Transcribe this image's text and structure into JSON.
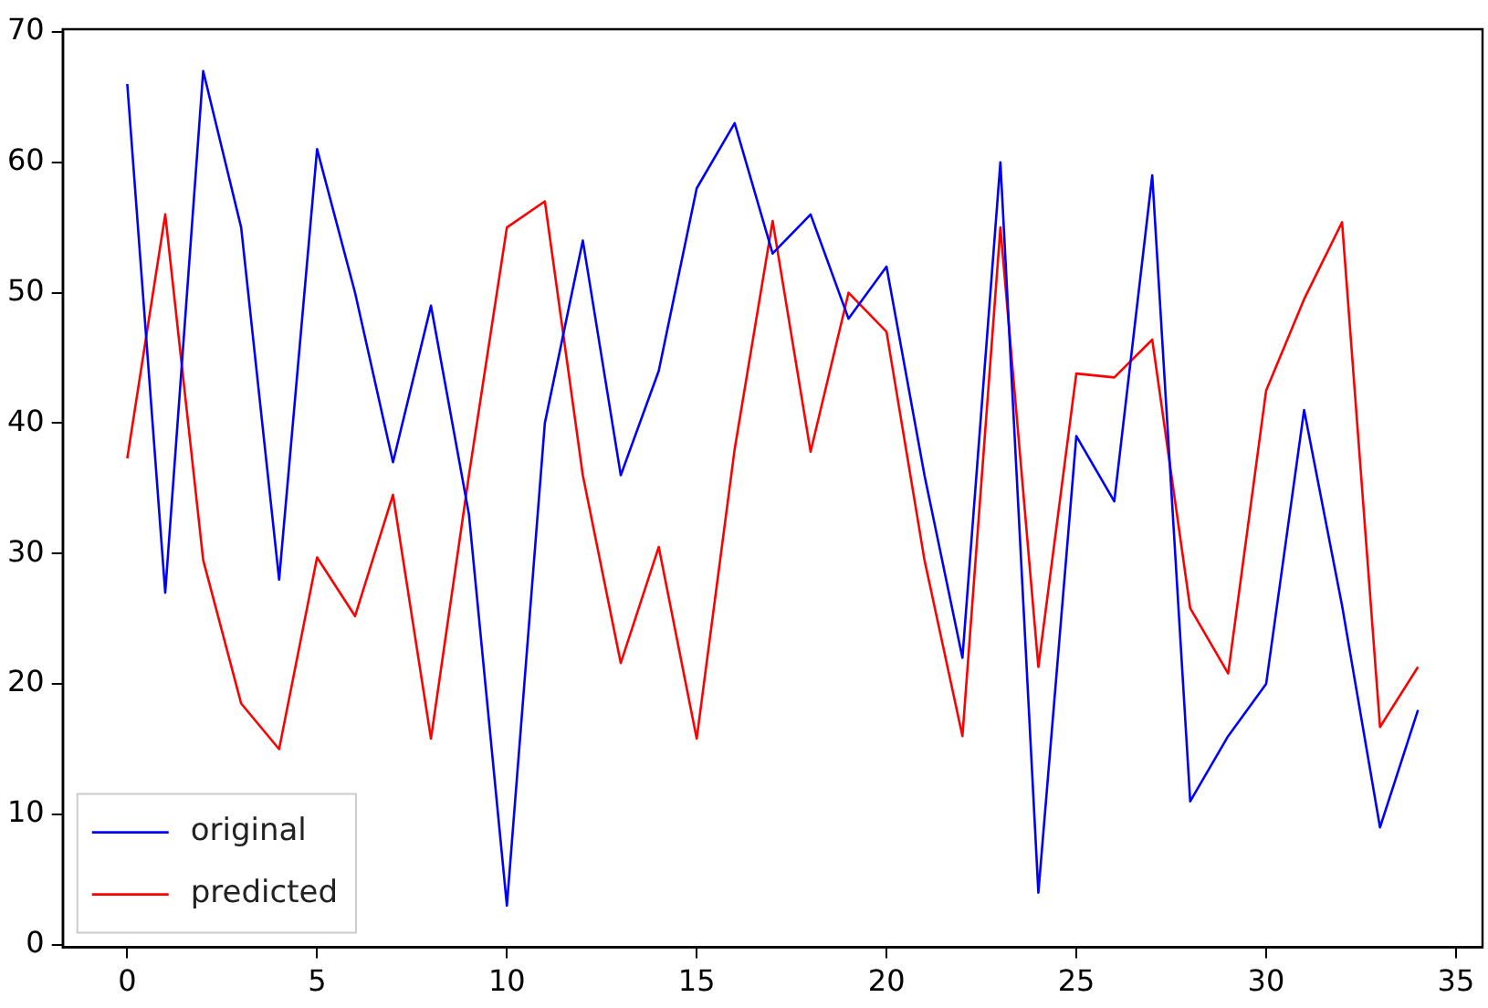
{
  "chart_data": {
    "type": "line",
    "x": [
      0,
      1,
      2,
      3,
      4,
      5,
      6,
      7,
      8,
      9,
      10,
      11,
      12,
      13,
      14,
      15,
      16,
      17,
      18,
      19,
      20,
      21,
      22,
      23,
      24,
      25,
      26,
      27,
      28,
      29,
      30,
      31,
      32,
      33,
      34
    ],
    "series": [
      {
        "name": "original",
        "color": "#0000ff",
        "values": [
          66,
          27,
          67,
          55,
          28,
          61,
          50,
          37,
          49,
          33,
          3,
          40,
          54,
          36,
          44,
          58,
          63,
          53,
          56,
          48,
          52,
          36,
          22,
          60,
          4,
          39,
          34,
          59,
          11,
          16,
          20,
          41,
          26,
          9,
          18
        ]
      },
      {
        "name": "predicted",
        "color": "#ff0000",
        "values": [
          37.3,
          56,
          29.5,
          18.5,
          15,
          29.7,
          25.2,
          34.5,
          15.8,
          36,
          55,
          57,
          36,
          21.6,
          30.5,
          15.8,
          38,
          55.5,
          37.8,
          50,
          47,
          29.5,
          16,
          55,
          21.3,
          43.8,
          43.5,
          46.4,
          25.8,
          20.8,
          42.5,
          49.5,
          55.4,
          16.7,
          21.3
        ]
      }
    ],
    "xlim": [
      -1.7,
      35.7
    ],
    "ylim": [
      -0.2,
      70.2
    ],
    "xticks": [
      0,
      5,
      10,
      15,
      20,
      25,
      30,
      35
    ],
    "yticks": [
      0,
      10,
      20,
      30,
      40,
      50,
      60,
      70
    ],
    "legend": "bottom left",
    "grid": false,
    "marker": "none",
    "line_style": "solid"
  }
}
